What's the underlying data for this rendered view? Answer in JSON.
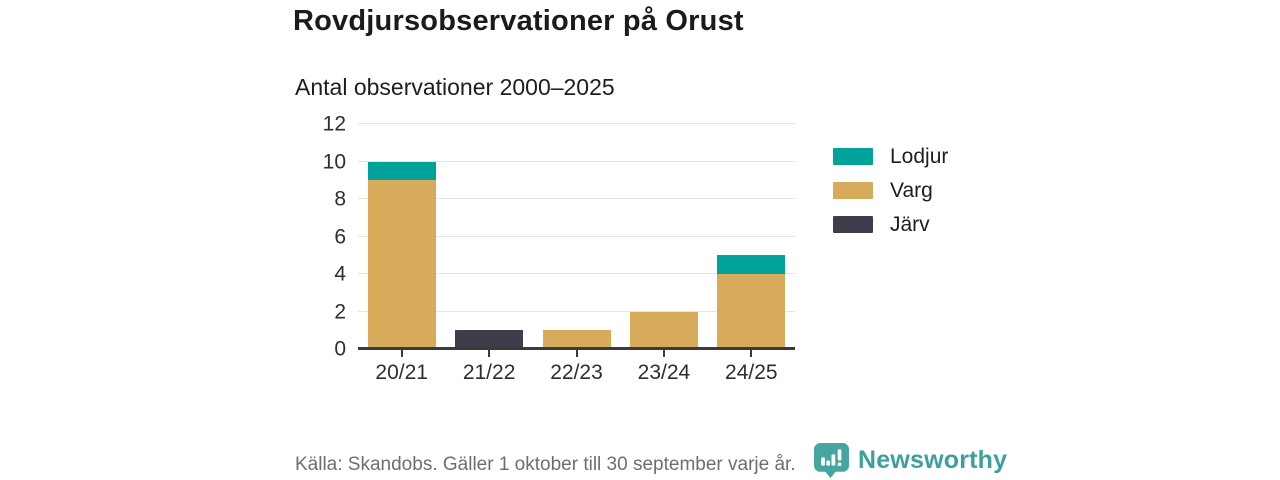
{
  "header": {
    "title": "Rovdjursobservationer på Orust",
    "subtitle": "Antal observationer 2000–2025"
  },
  "chart_data": {
    "type": "bar",
    "stacked": true,
    "title": "Rovdjursobservationer på Orust",
    "subtitle": "Antal observationer 2000–2025",
    "categories": [
      "20/21",
      "21/22",
      "22/23",
      "23/24",
      "24/25"
    ],
    "series": [
      {
        "name": "Lodjur",
        "color": "#00a29a",
        "values": [
          1,
          0,
          0,
          0,
          1
        ]
      },
      {
        "name": "Varg",
        "color": "#d8ab5a",
        "values": [
          9,
          0,
          1,
          2,
          4
        ]
      },
      {
        "name": "Järv",
        "color": "#3f3d4c",
        "values": [
          0,
          1,
          0,
          0,
          0
        ]
      }
    ],
    "totals": [
      10,
      1,
      1,
      2,
      5
    ],
    "xlabel": "",
    "ylabel": "",
    "ylim": [
      0,
      12
    ],
    "yticks": [
      0,
      2,
      4,
      6,
      8,
      10,
      12
    ],
    "grid": true,
    "legend_position": "right"
  },
  "footer": {
    "source": "Källa: Skandobs. Gäller 1 oktober till 30 september varje år.",
    "brand": "Newsworthy"
  },
  "colors": {
    "teal": "#00a29a",
    "gold": "#d8ab5a",
    "dark": "#3f3d4c",
    "brand_teal": "#45a5a1",
    "grid": "#e4e4e4",
    "axis": "#3a3a3a",
    "text_dark": "#1e1e1e",
    "text_muted": "#6e6e6e"
  }
}
